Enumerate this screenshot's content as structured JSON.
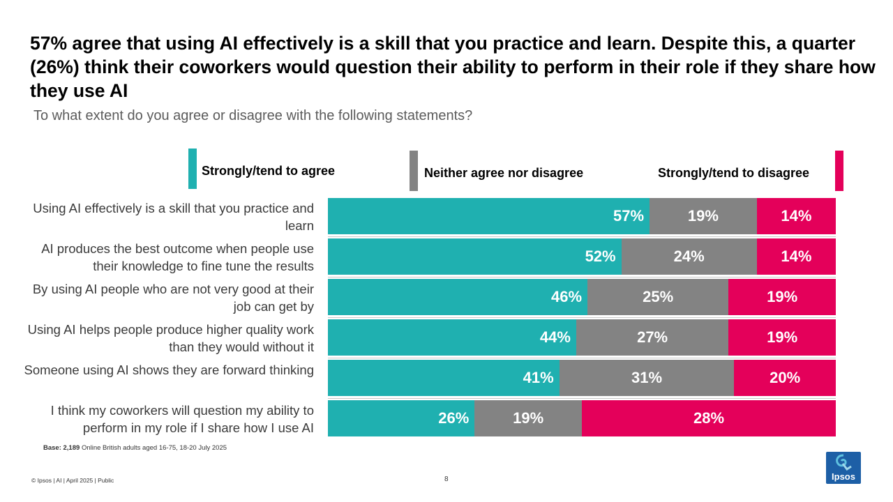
{
  "title": "57% agree that using AI effectively is a skill that you practice and learn. Despite this, a quarter (26%) think their coworkers would question their ability to perform in their role if they share how they use AI",
  "subtitle": "To what extent do you agree or disagree with the following statements?",
  "colors": {
    "agree": "#1fb0b0",
    "neither": "#838383",
    "disagree": "#e4005a"
  },
  "chart_data": {
    "type": "bar",
    "orientation": "horizontal-stacked",
    "title": "57% agree that using AI effectively is a skill that you practice and learn. Despite this, a quarter (26%) think their coworkers would question their ability to perform in their role if they share how they use AI",
    "subtitle": "To what extent do you agree or disagree with the following statements?",
    "categories": [
      "Using AI effectively is a skill that you practice and learn",
      "AI produces the best outcome when people use their knowledge to fine tune the results",
      "By using AI people who are not very good at their job can get by",
      "Using AI helps people produce higher quality work than they would without it",
      "Someone using AI shows they are forward thinking",
      "I think my coworkers will question my ability to perform in my role if I share how I use AI"
    ],
    "series": [
      {
        "name": "Strongly/tend to agree",
        "values": [
          57,
          52,
          46,
          44,
          41,
          26
        ]
      },
      {
        "name": "Neither agree nor disagree",
        "values": [
          19,
          24,
          25,
          27,
          31,
          19
        ]
      },
      {
        "name": "Strongly/tend to disagree",
        "values": [
          14,
          14,
          19,
          19,
          20,
          28
        ]
      }
    ],
    "value_suffix": "%",
    "axis_max": 90,
    "legend": "top"
  },
  "base_note": {
    "label": "Base: 2,189",
    "text": "Online British adults aged 16-75, 18-20 July 2025"
  },
  "footer": {
    "left": "© Ipsos | AI | April 2025 | Public",
    "page": "8"
  },
  "logo": {
    "text": "Ipsos"
  }
}
